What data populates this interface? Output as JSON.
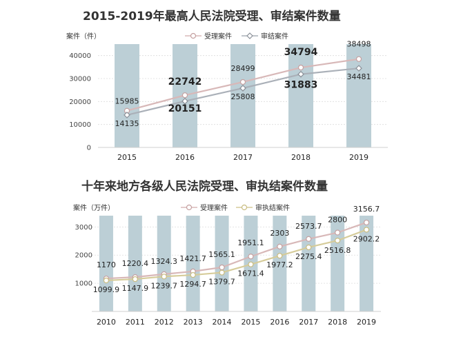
{
  "chart_data": [
    {
      "type": "line",
      "title": "2015-2019年最高人民法院受理、审结案件数量",
      "ylabel": "案件（件）",
      "categories": [
        "2015",
        "2016",
        "2017",
        "2018",
        "2019"
      ],
      "ylim": [
        0,
        45000
      ],
      "yticks": [
        "0",
        "10000",
        "20000",
        "30000",
        "40000"
      ],
      "grid": true,
      "legend_position": "top",
      "series": [
        {
          "name": "受理案件",
          "values": [
            15985,
            22742,
            28499,
            34794,
            38498
          ],
          "labels": [
            "15985",
            "22742",
            "28499",
            "34794",
            "38498"
          ],
          "color": "#d8b8b8",
          "marker": "circle"
        },
        {
          "name": "审结案件",
          "values": [
            14135,
            20151,
            25808,
            31883,
            34481
          ],
          "labels": [
            "14135",
            "20151",
            "25808",
            "31883",
            "34481"
          ],
          "color": "#aab0b8",
          "marker": "diamond"
        }
      ],
      "bar_color": "#bccfd6"
    },
    {
      "type": "line",
      "title": "十年来地方各级人民法院受理、审执结案件数量",
      "ylabel": "案件（万件）",
      "categories": [
        "2010",
        "2011",
        "2012",
        "2013",
        "2014",
        "2015",
        "2016",
        "2017",
        "2018",
        "2019"
      ],
      "ylim": [
        0,
        3400
      ],
      "yticks": [
        "1000",
        "2000",
        "3000"
      ],
      "grid": true,
      "legend_position": "top",
      "series": [
        {
          "name": "受理案件",
          "values": [
            1170,
            1220.4,
            1324.3,
            1421.7,
            1565.1,
            1951.1,
            2303,
            2573.7,
            2800,
            3156.7
          ],
          "labels": [
            "1170",
            "1220.4",
            "1324.3",
            "1421.7",
            "1565.1",
            "1951.1",
            "2303",
            "2573.7",
            "2800",
            "3156.7"
          ],
          "color": "#d8b8b8",
          "marker": "circle"
        },
        {
          "name": "审执结案件",
          "values": [
            1099.9,
            1147.9,
            1239.7,
            1294.7,
            1379.7,
            1671.4,
            1977.2,
            2275.4,
            2516.8,
            2902.2
          ],
          "labels": [
            "1099.9",
            "1147.9",
            "1239.7",
            "1294.7",
            "1379.7",
            "1671.4",
            "1977.2",
            "2275.4",
            "2516.8",
            "2902.2"
          ],
          "color": "#d6cc9a",
          "marker": "circle"
        }
      ],
      "bar_color": "#bccfd6"
    }
  ]
}
